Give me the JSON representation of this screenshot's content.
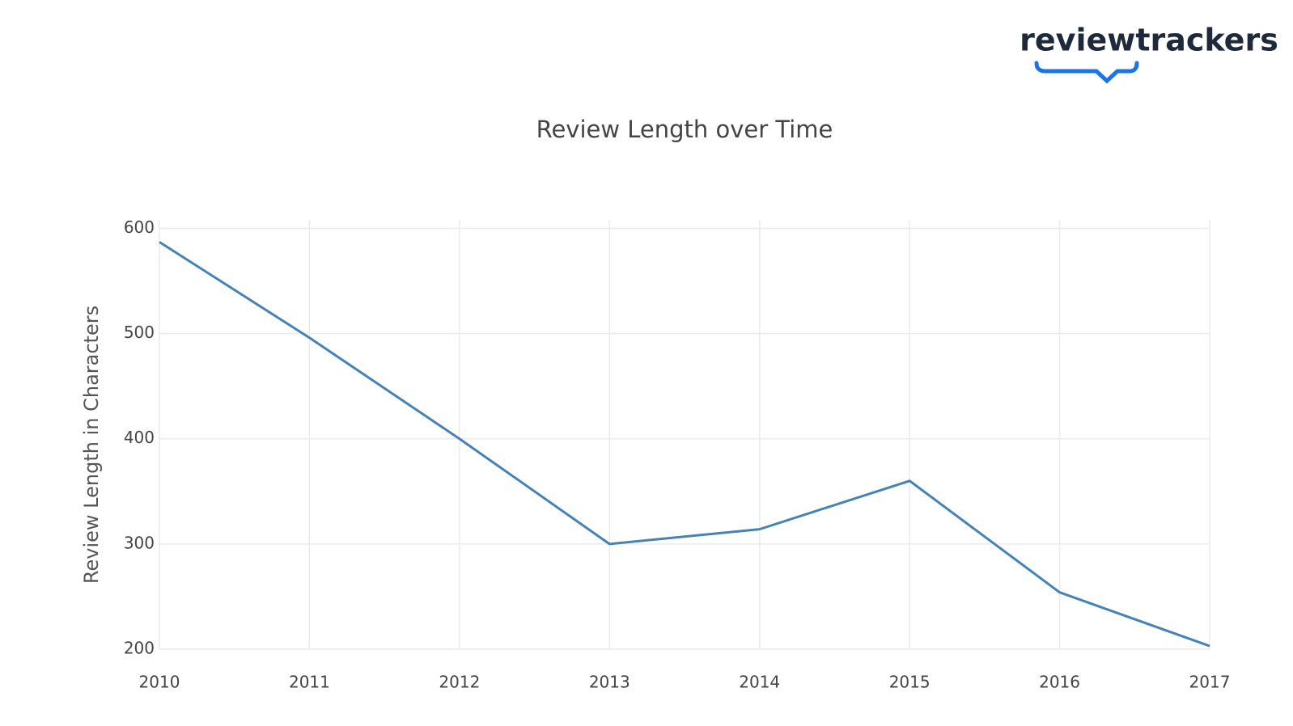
{
  "logo": "reviewtrackers",
  "chart_data": {
    "type": "line",
    "title": "Review Length over Time",
    "y_label": "Review Length in Characters",
    "x": [
      2010,
      2011,
      2012,
      2013,
      2014,
      2015,
      2016,
      2017
    ],
    "series": [
      {
        "name": "Review Length",
        "color": "#4682b4",
        "values": [
          587,
          496,
          400,
          300,
          314,
          360,
          254,
          203
        ]
      }
    ],
    "xlim": [
      2010,
      2017
    ],
    "xticks": [
      2010,
      2011,
      2012,
      2013,
      2014,
      2015,
      2016,
      2017
    ],
    "ylim": [
      200,
      608
    ],
    "yticks": [
      200,
      300,
      400,
      500,
      600
    ],
    "grid": true
  }
}
